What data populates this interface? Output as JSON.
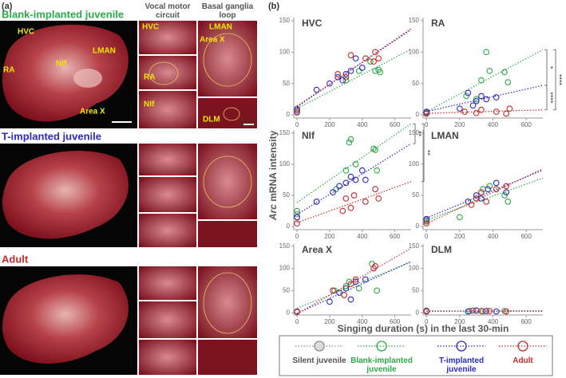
{
  "panel_a": {
    "label": "(a)",
    "column_headers": [
      "Vocal motor circuit",
      "Basal ganglia loop"
    ],
    "rows": [
      "Blank-implanted juvenile",
      "T-implanted juvenile",
      "Adult"
    ],
    "overview_labels": [
      "HVC",
      "RA",
      "NIf",
      "LMAN",
      "Area X"
    ],
    "vocal_labels": [
      "HVC",
      "RA",
      "NIf"
    ],
    "basal_labels": [
      "LMAN",
      "Area X",
      "DLM"
    ]
  },
  "panel_b": {
    "label": "(b)",
    "y_label_italic": "Arc",
    "y_label": "mRNA intensity",
    "x_label": "Singing duration (s) in the last 30-min"
  },
  "chart_data": [
    {
      "type": "scatter",
      "title": "HVC",
      "xlim": [
        -20,
        700
      ],
      "ylim": [
        -5,
        155
      ],
      "xticks": [
        0,
        200,
        400,
        600
      ],
      "yticks": [
        0,
        50,
        100,
        150
      ],
      "series": [
        {
          "name": "Silent juvenile",
          "color": "#8c8c8c",
          "x": [
            0,
            0,
            0,
            0
          ],
          "values": [
            5,
            8,
            10,
            3
          ]
        },
        {
          "name": "Blank-implanted juvenile",
          "color": "#2ea84a",
          "x": [
            0,
            300,
            380,
            450,
            480,
            500,
            510
          ],
          "values": [
            5,
            55,
            70,
            85,
            70,
            72,
            68
          ]
        },
        {
          "name": "T-implanted juvenile",
          "color": "#2b2bc4",
          "x": [
            0,
            120,
            200,
            250,
            280,
            300,
            330,
            360,
            400
          ],
          "values": [
            8,
            40,
            50,
            60,
            55,
            65,
            70,
            90,
            75
          ]
        },
        {
          "name": "Adult",
          "color": "#c42b2b",
          "x": [
            0,
            250,
            300,
            330,
            420,
            470,
            480,
            500
          ],
          "values": [
            5,
            65,
            60,
            95,
            90,
            85,
            100,
            90
          ]
        }
      ]
    },
    {
      "type": "scatter",
      "title": "RA",
      "xlim": [
        -20,
        700
      ],
      "ylim": [
        -5,
        155
      ],
      "xticks": [
        0,
        200,
        400,
        600
      ],
      "yticks": [
        0,
        50,
        100,
        150
      ],
      "annotations": [
        "*",
        "****",
        "****"
      ],
      "series": [
        {
          "name": "Silent juvenile",
          "color": "#8c8c8c",
          "x": [
            0,
            0
          ],
          "values": [
            2,
            4
          ]
        },
        {
          "name": "Blank-implanted juvenile",
          "color": "#2ea84a",
          "x": [
            0,
            240,
            300,
            330,
            360,
            380,
            470,
            490
          ],
          "values": [
            3,
            30,
            25,
            55,
            100,
            70,
            68,
            52
          ]
        },
        {
          "name": "T-implanted juvenile",
          "color": "#2b2bc4",
          "x": [
            0,
            200,
            250,
            280,
            300,
            330,
            360,
            420
          ],
          "values": [
            5,
            10,
            35,
            15,
            22,
            30,
            25,
            28
          ]
        },
        {
          "name": "Adult",
          "color": "#c42b2b",
          "x": [
            0,
            230,
            300,
            330,
            420,
            480,
            500
          ],
          "values": [
            2,
            5,
            3,
            8,
            5,
            2,
            10
          ]
        }
      ]
    },
    {
      "type": "scatter",
      "title": "NIf",
      "xlim": [
        -20,
        700
      ],
      "ylim": [
        -5,
        155
      ],
      "xticks": [
        0,
        200,
        400,
        600
      ],
      "yticks": [
        0,
        50,
        100,
        150
      ],
      "annotations": [
        "**",
        "**"
      ],
      "series": [
        {
          "name": "Silent juvenile",
          "color": "#8c8c8c",
          "x": [
            0,
            0
          ],
          "values": [
            20,
            15
          ]
        },
        {
          "name": "Blank-implanted juvenile",
          "color": "#2ea84a",
          "x": [
            0,
            240,
            300,
            320,
            330,
            360,
            470,
            480,
            490
          ],
          "values": [
            25,
            60,
            90,
            135,
            140,
            100,
            125,
            123,
            90
          ]
        },
        {
          "name": "T-implanted juvenile",
          "color": "#2b2bc4",
          "x": [
            0,
            120,
            220,
            260,
            300,
            330,
            360,
            400,
            420
          ],
          "values": [
            15,
            40,
            55,
            65,
            70,
            80,
            75,
            90,
            75
          ]
        },
        {
          "name": "Adult",
          "color": "#c42b2b",
          "x": [
            0,
            280,
            300,
            330,
            350,
            420,
            480,
            500
          ],
          "values": [
            5,
            25,
            45,
            30,
            50,
            40,
            60,
            45
          ]
        }
      ]
    },
    {
      "type": "scatter",
      "title": "LMAN",
      "xlim": [
        -20,
        700
      ],
      "ylim": [
        -5,
        155
      ],
      "xticks": [
        0,
        200,
        400,
        600
      ],
      "yticks": [
        0,
        50,
        100,
        150
      ],
      "series": [
        {
          "name": "Silent juvenile",
          "color": "#8c8c8c",
          "x": [
            0,
            0
          ],
          "values": [
            10,
            12
          ]
        },
        {
          "name": "Blank-implanted juvenile",
          "color": "#2ea84a",
          "x": [
            0,
            200,
            300,
            340,
            380,
            470,
            490
          ],
          "values": [
            8,
            15,
            45,
            60,
            65,
            50,
            40
          ]
        },
        {
          "name": "T-implanted juvenile",
          "color": "#2b2bc4",
          "x": [
            0,
            250,
            300,
            330,
            370,
            420,
            480
          ],
          "values": [
            12,
            40,
            50,
            45,
            60,
            70,
            55
          ]
        },
        {
          "name": "Adult",
          "color": "#c42b2b",
          "x": [
            0,
            270,
            300,
            330,
            360,
            420,
            480
          ],
          "values": [
            5,
            35,
            45,
            55,
            40,
            60,
            65
          ]
        }
      ]
    },
    {
      "type": "scatter",
      "title": "Area X",
      "xlim": [
        -20,
        700
      ],
      "ylim": [
        -5,
        155
      ],
      "xticks": [
        0,
        200,
        400,
        600
      ],
      "yticks": [
        0,
        50,
        100,
        150
      ],
      "series": [
        {
          "name": "Silent juvenile",
          "color": "#8c8c8c",
          "x": [
            0
          ],
          "values": [
            3
          ]
        },
        {
          "name": "Blank-implanted juvenile",
          "color": "#2ea84a",
          "x": [
            0,
            230,
            300,
            320,
            380,
            460,
            490
          ],
          "values": [
            2,
            50,
            60,
            70,
            55,
            110,
            50
          ]
        },
        {
          "name": "T-implanted juvenile",
          "color": "#2b2bc4",
          "x": [
            0,
            200,
            260,
            300,
            330,
            360,
            420
          ],
          "values": [
            3,
            25,
            45,
            55,
            30,
            70,
            75
          ]
        },
        {
          "name": "Adult",
          "color": "#c42b2b",
          "x": [
            0,
            220,
            290,
            330,
            360,
            470,
            480
          ],
          "values": [
            2,
            50,
            40,
            65,
            75,
            100,
            105
          ]
        }
      ]
    },
    {
      "type": "scatter",
      "title": "DLM",
      "xlim": [
        -20,
        700
      ],
      "ylim": [
        -5,
        155
      ],
      "xticks": [
        0,
        200,
        400,
        600
      ],
      "yticks": [
        0,
        50,
        100,
        150
      ],
      "series": [
        {
          "name": "Silent juvenile",
          "color": "#8c8c8c",
          "x": [
            0,
            0
          ],
          "values": [
            5,
            3
          ]
        },
        {
          "name": "Blank-implanted juvenile",
          "color": "#2ea84a",
          "x": [
            0,
            260,
            300,
            340,
            470
          ],
          "values": [
            3,
            4,
            5,
            3,
            4
          ]
        },
        {
          "name": "T-implanted juvenile",
          "color": "#2b2bc4",
          "x": [
            0,
            250,
            300,
            360,
            420
          ],
          "values": [
            4,
            3,
            5,
            4,
            3
          ]
        },
        {
          "name": "Adult",
          "color": "#c42b2b",
          "x": [
            0,
            280,
            330,
            380,
            480
          ],
          "values": [
            3,
            5,
            4,
            4,
            3
          ]
        }
      ]
    }
  ]
}
